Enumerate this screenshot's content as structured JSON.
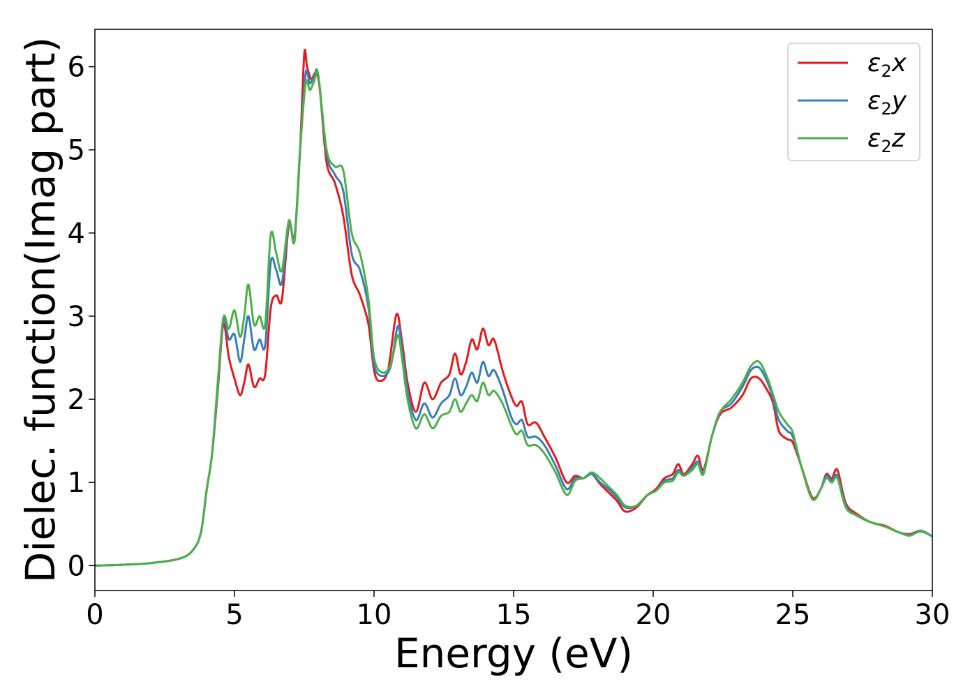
{
  "chart_data": {
    "type": "line",
    "xlabel": "Energy (eV)",
    "ylabel": "Dielec. function(Imag part)",
    "xlim": [
      0,
      30
    ],
    "ylim": [
      -0.3,
      6.45
    ],
    "xticks": [
      0,
      5,
      10,
      15,
      20,
      25,
      30
    ],
    "yticks": [
      0,
      1,
      2,
      3,
      4,
      5,
      6
    ],
    "grid": false,
    "legend_position": "top-right",
    "series": [
      {
        "name": "ε₂x",
        "legend_base": "ε",
        "legend_sub": "2",
        "legend_suffix": "x",
        "color": "#e41a1c",
        "points": [
          [
            0,
            0
          ],
          [
            1,
            0.01
          ],
          [
            2,
            0.03
          ],
          [
            3,
            0.08
          ],
          [
            3.5,
            0.18
          ],
          [
            3.8,
            0.4
          ],
          [
            4.0,
            0.9
          ],
          [
            4.2,
            1.35
          ],
          [
            4.4,
            2.1
          ],
          [
            4.6,
            2.9
          ],
          [
            4.8,
            2.5
          ],
          [
            5.0,
            2.25
          ],
          [
            5.2,
            2.05
          ],
          [
            5.35,
            2.2
          ],
          [
            5.5,
            2.42
          ],
          [
            5.7,
            2.15
          ],
          [
            5.9,
            2.25
          ],
          [
            6.1,
            2.3
          ],
          [
            6.3,
            3.1
          ],
          [
            6.5,
            3.25
          ],
          [
            6.7,
            3.2
          ],
          [
            6.95,
            4.1
          ],
          [
            7.15,
            3.95
          ],
          [
            7.35,
            5.0
          ],
          [
            7.5,
            6.15
          ],
          [
            7.6,
            6.0
          ],
          [
            7.75,
            5.85
          ],
          [
            7.9,
            5.92
          ],
          [
            8.05,
            5.75
          ],
          [
            8.3,
            4.85
          ],
          [
            8.6,
            4.6
          ],
          [
            8.9,
            4.2
          ],
          [
            9.2,
            3.5
          ],
          [
            9.5,
            3.25
          ],
          [
            9.8,
            2.9
          ],
          [
            10.0,
            2.35
          ],
          [
            10.2,
            2.22
          ],
          [
            10.5,
            2.35
          ],
          [
            10.8,
            3.02
          ],
          [
            11.0,
            2.7
          ],
          [
            11.2,
            2.2
          ],
          [
            11.5,
            1.85
          ],
          [
            11.8,
            2.2
          ],
          [
            12.1,
            2.0
          ],
          [
            12.4,
            2.2
          ],
          [
            12.7,
            2.3
          ],
          [
            12.9,
            2.55
          ],
          [
            13.1,
            2.3
          ],
          [
            13.3,
            2.45
          ],
          [
            13.5,
            2.72
          ],
          [
            13.7,
            2.6
          ],
          [
            13.9,
            2.85
          ],
          [
            14.1,
            2.65
          ],
          [
            14.3,
            2.72
          ],
          [
            14.6,
            2.35
          ],
          [
            14.9,
            2.05
          ],
          [
            15.1,
            1.92
          ],
          [
            15.3,
            1.97
          ],
          [
            15.5,
            1.7
          ],
          [
            15.8,
            1.72
          ],
          [
            16.1,
            1.55
          ],
          [
            16.5,
            1.3
          ],
          [
            16.9,
            1.0
          ],
          [
            17.2,
            1.08
          ],
          [
            17.5,
            1.05
          ],
          [
            17.8,
            1.1
          ],
          [
            18.1,
            0.98
          ],
          [
            18.4,
            0.88
          ],
          [
            18.7,
            0.78
          ],
          [
            19.0,
            0.65
          ],
          [
            19.4,
            0.7
          ],
          [
            19.8,
            0.85
          ],
          [
            20.1,
            0.92
          ],
          [
            20.4,
            1.05
          ],
          [
            20.7,
            1.1
          ],
          [
            20.9,
            1.22
          ],
          [
            21.1,
            1.1
          ],
          [
            21.4,
            1.22
          ],
          [
            21.6,
            1.32
          ],
          [
            21.8,
            1.15
          ],
          [
            22.1,
            1.55
          ],
          [
            22.4,
            1.82
          ],
          [
            22.8,
            1.9
          ],
          [
            23.2,
            2.05
          ],
          [
            23.5,
            2.25
          ],
          [
            23.8,
            2.25
          ],
          [
            24.1,
            2.1
          ],
          [
            24.3,
            1.95
          ],
          [
            24.5,
            1.62
          ],
          [
            24.8,
            1.52
          ],
          [
            25.0,
            1.48
          ],
          [
            25.3,
            1.2
          ],
          [
            25.7,
            0.82
          ],
          [
            26.0,
            0.92
          ],
          [
            26.2,
            1.1
          ],
          [
            26.4,
            1.05
          ],
          [
            26.6,
            1.15
          ],
          [
            26.9,
            0.75
          ],
          [
            27.3,
            0.62
          ],
          [
            27.8,
            0.52
          ],
          [
            28.3,
            0.48
          ],
          [
            28.8,
            0.4
          ],
          [
            29.2,
            0.38
          ],
          [
            29.6,
            0.42
          ],
          [
            30,
            0.35
          ]
        ]
      },
      {
        "name": "ε₂y",
        "legend_base": "ε",
        "legend_sub": "2",
        "legend_suffix": "y",
        "color": "#377eb8",
        "points": [
          [
            0,
            0
          ],
          [
            1,
            0.01
          ],
          [
            2,
            0.03
          ],
          [
            3,
            0.08
          ],
          [
            3.5,
            0.18
          ],
          [
            3.8,
            0.4
          ],
          [
            4.0,
            0.9
          ],
          [
            4.2,
            1.35
          ],
          [
            4.4,
            2.15
          ],
          [
            4.6,
            2.95
          ],
          [
            4.8,
            2.72
          ],
          [
            5.0,
            2.78
          ],
          [
            5.2,
            2.45
          ],
          [
            5.35,
            2.72
          ],
          [
            5.5,
            3.0
          ],
          [
            5.7,
            2.6
          ],
          [
            5.9,
            2.72
          ],
          [
            6.1,
            2.65
          ],
          [
            6.3,
            3.65
          ],
          [
            6.5,
            3.55
          ],
          [
            6.7,
            3.4
          ],
          [
            6.95,
            4.12
          ],
          [
            7.15,
            3.95
          ],
          [
            7.35,
            5.0
          ],
          [
            7.55,
            5.92
          ],
          [
            7.7,
            5.8
          ],
          [
            7.85,
            5.88
          ],
          [
            8.0,
            5.9
          ],
          [
            8.3,
            4.95
          ],
          [
            8.6,
            4.7
          ],
          [
            8.9,
            4.5
          ],
          [
            9.2,
            3.75
          ],
          [
            9.5,
            3.55
          ],
          [
            9.8,
            3.1
          ],
          [
            10.0,
            2.42
          ],
          [
            10.3,
            2.28
          ],
          [
            10.6,
            2.4
          ],
          [
            10.85,
            2.88
          ],
          [
            11.0,
            2.6
          ],
          [
            11.2,
            2.1
          ],
          [
            11.5,
            1.75
          ],
          [
            11.8,
            1.95
          ],
          [
            12.1,
            1.78
          ],
          [
            12.4,
            1.95
          ],
          [
            12.7,
            2.05
          ],
          [
            12.9,
            2.25
          ],
          [
            13.1,
            2.05
          ],
          [
            13.3,
            2.15
          ],
          [
            13.5,
            2.32
          ],
          [
            13.7,
            2.2
          ],
          [
            13.9,
            2.45
          ],
          [
            14.1,
            2.28
          ],
          [
            14.3,
            2.35
          ],
          [
            14.6,
            2.12
          ],
          [
            14.9,
            1.8
          ],
          [
            15.1,
            1.7
          ],
          [
            15.3,
            1.75
          ],
          [
            15.5,
            1.55
          ],
          [
            15.8,
            1.55
          ],
          [
            16.1,
            1.45
          ],
          [
            16.5,
            1.2
          ],
          [
            16.9,
            0.92
          ],
          [
            17.2,
            1.05
          ],
          [
            17.5,
            1.05
          ],
          [
            17.8,
            1.1
          ],
          [
            18.1,
            1.0
          ],
          [
            18.4,
            0.92
          ],
          [
            18.7,
            0.82
          ],
          [
            19.0,
            0.7
          ],
          [
            19.4,
            0.72
          ],
          [
            19.8,
            0.85
          ],
          [
            20.1,
            0.9
          ],
          [
            20.4,
            1.02
          ],
          [
            20.7,
            1.05
          ],
          [
            20.9,
            1.15
          ],
          [
            21.1,
            1.08
          ],
          [
            21.4,
            1.18
          ],
          [
            21.6,
            1.25
          ],
          [
            21.8,
            1.12
          ],
          [
            22.1,
            1.55
          ],
          [
            22.4,
            1.85
          ],
          [
            22.8,
            1.95
          ],
          [
            23.2,
            2.15
          ],
          [
            23.5,
            2.35
          ],
          [
            23.8,
            2.38
          ],
          [
            24.1,
            2.2
          ],
          [
            24.3,
            2.0
          ],
          [
            24.5,
            1.75
          ],
          [
            24.8,
            1.62
          ],
          [
            25.0,
            1.55
          ],
          [
            25.3,
            1.2
          ],
          [
            25.7,
            0.8
          ],
          [
            26.0,
            0.92
          ],
          [
            26.2,
            1.08
          ],
          [
            26.4,
            1.02
          ],
          [
            26.6,
            1.08
          ],
          [
            26.9,
            0.72
          ],
          [
            27.3,
            0.6
          ],
          [
            27.8,
            0.52
          ],
          [
            28.3,
            0.47
          ],
          [
            28.8,
            0.4
          ],
          [
            29.2,
            0.37
          ],
          [
            29.6,
            0.41
          ],
          [
            30,
            0.35
          ]
        ]
      },
      {
        "name": "ε₂z",
        "legend_base": "ε",
        "legend_sub": "2",
        "legend_suffix": "z",
        "color": "#4daf4a",
        "points": [
          [
            0,
            0
          ],
          [
            1,
            0.01
          ],
          [
            2,
            0.03
          ],
          [
            3,
            0.08
          ],
          [
            3.5,
            0.18
          ],
          [
            3.8,
            0.4
          ],
          [
            4.0,
            0.9
          ],
          [
            4.2,
            1.35
          ],
          [
            4.4,
            2.2
          ],
          [
            4.6,
            2.98
          ],
          [
            4.8,
            2.85
          ],
          [
            5.0,
            3.07
          ],
          [
            5.2,
            2.75
          ],
          [
            5.35,
            3.0
          ],
          [
            5.5,
            3.38
          ],
          [
            5.7,
            2.9
          ],
          [
            5.9,
            3.0
          ],
          [
            6.1,
            2.9
          ],
          [
            6.3,
            3.98
          ],
          [
            6.5,
            3.75
          ],
          [
            6.7,
            3.55
          ],
          [
            6.95,
            4.15
          ],
          [
            7.15,
            3.9
          ],
          [
            7.35,
            5.0
          ],
          [
            7.55,
            5.8
          ],
          [
            7.7,
            5.72
          ],
          [
            7.85,
            5.82
          ],
          [
            8.0,
            5.9
          ],
          [
            8.3,
            5.0
          ],
          [
            8.6,
            4.8
          ],
          [
            8.9,
            4.75
          ],
          [
            9.2,
            4.0
          ],
          [
            9.5,
            3.75
          ],
          [
            9.8,
            3.2
          ],
          [
            10.0,
            2.5
          ],
          [
            10.3,
            2.32
          ],
          [
            10.6,
            2.42
          ],
          [
            10.85,
            2.77
          ],
          [
            11.0,
            2.5
          ],
          [
            11.2,
            2.0
          ],
          [
            11.5,
            1.65
          ],
          [
            11.8,
            1.82
          ],
          [
            12.1,
            1.65
          ],
          [
            12.4,
            1.8
          ],
          [
            12.7,
            1.85
          ],
          [
            12.9,
            2.0
          ],
          [
            13.1,
            1.85
          ],
          [
            13.3,
            1.95
          ],
          [
            13.5,
            2.05
          ],
          [
            13.7,
            1.98
          ],
          [
            13.9,
            2.2
          ],
          [
            14.1,
            2.05
          ],
          [
            14.3,
            2.1
          ],
          [
            14.6,
            1.95
          ],
          [
            14.9,
            1.7
          ],
          [
            15.1,
            1.58
          ],
          [
            15.3,
            1.62
          ],
          [
            15.5,
            1.45
          ],
          [
            15.8,
            1.45
          ],
          [
            16.1,
            1.35
          ],
          [
            16.5,
            1.12
          ],
          [
            16.9,
            0.85
          ],
          [
            17.2,
            1.02
          ],
          [
            17.5,
            1.05
          ],
          [
            17.8,
            1.12
          ],
          [
            18.1,
            1.05
          ],
          [
            18.4,
            0.95
          ],
          [
            18.7,
            0.85
          ],
          [
            19.0,
            0.72
          ],
          [
            19.4,
            0.72
          ],
          [
            19.8,
            0.85
          ],
          [
            20.1,
            0.9
          ],
          [
            20.4,
            1.0
          ],
          [
            20.7,
            1.02
          ],
          [
            20.9,
            1.12
          ],
          [
            21.1,
            1.08
          ],
          [
            21.4,
            1.15
          ],
          [
            21.6,
            1.22
          ],
          [
            21.8,
            1.1
          ],
          [
            22.1,
            1.55
          ],
          [
            22.4,
            1.85
          ],
          [
            22.8,
            2.0
          ],
          [
            23.2,
            2.2
          ],
          [
            23.5,
            2.4
          ],
          [
            23.8,
            2.45
          ],
          [
            24.1,
            2.25
          ],
          [
            24.3,
            2.05
          ],
          [
            24.5,
            1.85
          ],
          [
            24.8,
            1.7
          ],
          [
            25.0,
            1.6
          ],
          [
            25.3,
            1.2
          ],
          [
            25.7,
            0.8
          ],
          [
            26.0,
            0.92
          ],
          [
            26.2,
            1.05
          ],
          [
            26.4,
            1.0
          ],
          [
            26.6,
            1.05
          ],
          [
            26.9,
            0.7
          ],
          [
            27.3,
            0.6
          ],
          [
            27.8,
            0.52
          ],
          [
            28.3,
            0.47
          ],
          [
            28.8,
            0.4
          ],
          [
            29.2,
            0.36
          ],
          [
            29.6,
            0.42
          ],
          [
            30,
            0.35
          ]
        ]
      }
    ]
  }
}
